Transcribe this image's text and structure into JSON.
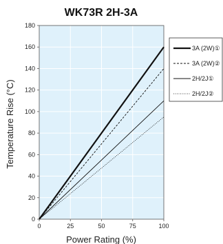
{
  "chart_data": {
    "type": "line",
    "title": "WK73R 2H-3A",
    "xlabel": "Power Rating (%)",
    "ylabel": "Temperature Rise (°C)",
    "xlim": [
      0,
      100
    ],
    "ylim": [
      0,
      180
    ],
    "xticks": [
      0,
      25,
      50,
      75,
      100
    ],
    "yticks": [
      0,
      20,
      40,
      60,
      80,
      100,
      120,
      140,
      160,
      180
    ],
    "grid": true,
    "plot_background": "#dff1fb",
    "grid_color": "#ffffff",
    "legend_position": "right",
    "series": [
      {
        "name": "3A (2W)①",
        "x": [
          0,
          100
        ],
        "y": [
          0,
          160
        ],
        "style": "solid-thick",
        "color": "#111111"
      },
      {
        "name": "3A (2W)②",
        "x": [
          0,
          100
        ],
        "y": [
          0,
          140
        ],
        "style": "dashed",
        "color": "#111111"
      },
      {
        "name": "2H/2J①",
        "x": [
          0,
          100
        ],
        "y": [
          0,
          110
        ],
        "style": "solid-thin",
        "color": "#111111"
      },
      {
        "name": "2H/2J②",
        "x": [
          0,
          100
        ],
        "y": [
          0,
          95
        ],
        "style": "dotted",
        "color": "#111111"
      }
    ]
  }
}
